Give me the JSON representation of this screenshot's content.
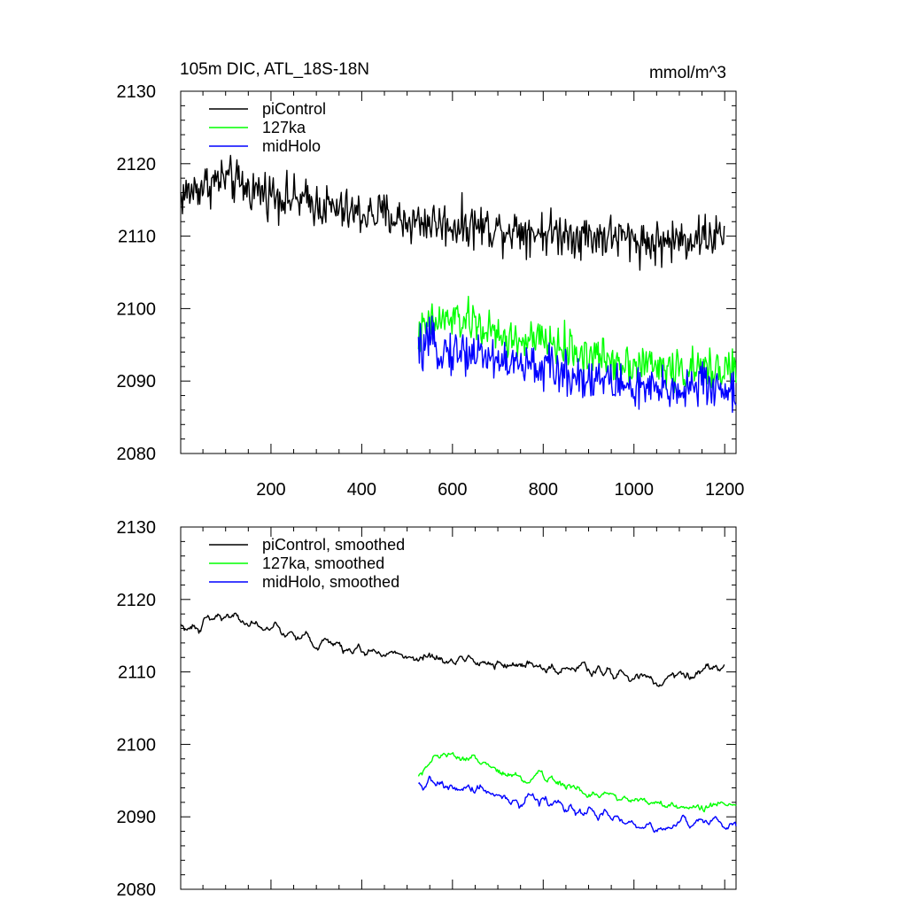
{
  "title_left": "105m DIC, ATL_18S-18N",
  "title_right": "mmol/m^3",
  "chart_data": [
    {
      "type": "line",
      "panel": "top",
      "title": "105m DIC, ATL_18S-18N",
      "units": "mmol/m^3",
      "xlim": [
        1,
        1225
      ],
      "ylim": [
        2080,
        2130
      ],
      "xticks": [
        200,
        400,
        600,
        800,
        1000,
        1200
      ],
      "xtick_labels": [
        "200",
        "400",
        "600",
        "800",
        "1000",
        "1200"
      ],
      "yticks": [
        2080,
        2090,
        2100,
        2110,
        2120,
        2130
      ],
      "ytick_labels": [
        "2080",
        "2090",
        "2100",
        "2110",
        "2120",
        "2130"
      ],
      "grid": false,
      "legend_position": "top-left",
      "series": [
        {
          "name": "piControl",
          "color": "#000000",
          "x": [
            1,
            50,
            100,
            150,
            200,
            250,
            300,
            350,
            400,
            450,
            500,
            550,
            600,
            650,
            700,
            750,
            800,
            850,
            900,
            950,
            1000,
            1050,
            1100,
            1150,
            1200
          ],
          "y": [
            2115.5,
            2117,
            2118,
            2116.5,
            2116,
            2115,
            2114.5,
            2113.5,
            2113,
            2113,
            2112,
            2112,
            2111.5,
            2111.5,
            2111,
            2111,
            2110.5,
            2110.5,
            2110,
            2110,
            2109.5,
            2109,
            2109.5,
            2110,
            2110
          ],
          "noise": 2.2,
          "style": "raw"
        },
        {
          "name": "127ka",
          "color": "#00ff00",
          "x": [
            525,
            550,
            600,
            650,
            700,
            750,
            800,
            850,
            900,
            950,
            1000,
            1050,
            1100,
            1150,
            1200,
            1225
          ],
          "y": [
            2096,
            2098,
            2098.5,
            2098,
            2096,
            2095.5,
            2095.5,
            2094.5,
            2093.5,
            2093,
            2092.5,
            2092,
            2091.5,
            2091.5,
            2092,
            2091.5
          ],
          "noise": 2.0,
          "style": "raw"
        },
        {
          "name": "midHolo",
          "color": "#0000ff",
          "x": [
            525,
            550,
            600,
            650,
            700,
            750,
            800,
            850,
            900,
            950,
            1000,
            1050,
            1100,
            1150,
            1200,
            1225
          ],
          "y": [
            2094,
            2095,
            2094,
            2094,
            2093,
            2092,
            2092,
            2091,
            2090.5,
            2090,
            2089,
            2088.5,
            2089,
            2089.5,
            2089,
            2088
          ],
          "noise": 2.2,
          "style": "raw"
        }
      ]
    },
    {
      "type": "line",
      "panel": "bottom",
      "xlim": [
        1,
        1225
      ],
      "ylim": [
        2080,
        2130
      ],
      "xticks": [
        200,
        400,
        600,
        800,
        1000,
        1200
      ],
      "yticks": [
        2080,
        2090,
        2100,
        2110,
        2120,
        2130
      ],
      "ytick_labels": [
        "2080",
        "2090",
        "2100",
        "2110",
        "2120",
        "2130"
      ],
      "grid": false,
      "legend_position": "top-left",
      "series": [
        {
          "name": "piControl, smoothed",
          "color": "#000000",
          "x": [
            1,
            50,
            100,
            150,
            200,
            250,
            300,
            350,
            400,
            450,
            500,
            550,
            600,
            650,
            700,
            750,
            800,
            850,
            900,
            950,
            1000,
            1050,
            1100,
            1150,
            1200
          ],
          "y": [
            2115.5,
            2117,
            2118,
            2116.5,
            2116,
            2115,
            2114.5,
            2113.5,
            2113,
            2113,
            2112,
            2112,
            2111.5,
            2111.5,
            2111,
            2111,
            2110.5,
            2110.5,
            2110,
            2110,
            2109.5,
            2109,
            2109.5,
            2110,
            2110
          ],
          "noise": 0.9,
          "style": "smoothed"
        },
        {
          "name": "127ka, smoothed",
          "color": "#00ff00",
          "x": [
            525,
            550,
            600,
            650,
            700,
            750,
            800,
            850,
            900,
            950,
            1000,
            1050,
            1100,
            1150,
            1200,
            1225
          ],
          "y": [
            2096,
            2098,
            2098.5,
            2098,
            2096,
            2095.5,
            2095.5,
            2094.5,
            2093.5,
            2093,
            2092.5,
            2092,
            2091.5,
            2091.5,
            2092,
            2091.5
          ],
          "noise": 0.8,
          "style": "smoothed"
        },
        {
          "name": "midHolo, smoothed",
          "color": "#0000ff",
          "x": [
            525,
            550,
            600,
            650,
            700,
            750,
            800,
            850,
            900,
            950,
            1000,
            1050,
            1100,
            1150,
            1200,
            1225
          ],
          "y": [
            2094,
            2095,
            2094,
            2094,
            2093,
            2092,
            2092,
            2091,
            2090.5,
            2090,
            2089,
            2088.5,
            2089,
            2089.5,
            2089,
            2088
          ],
          "noise": 0.9,
          "style": "smoothed"
        }
      ]
    }
  ]
}
